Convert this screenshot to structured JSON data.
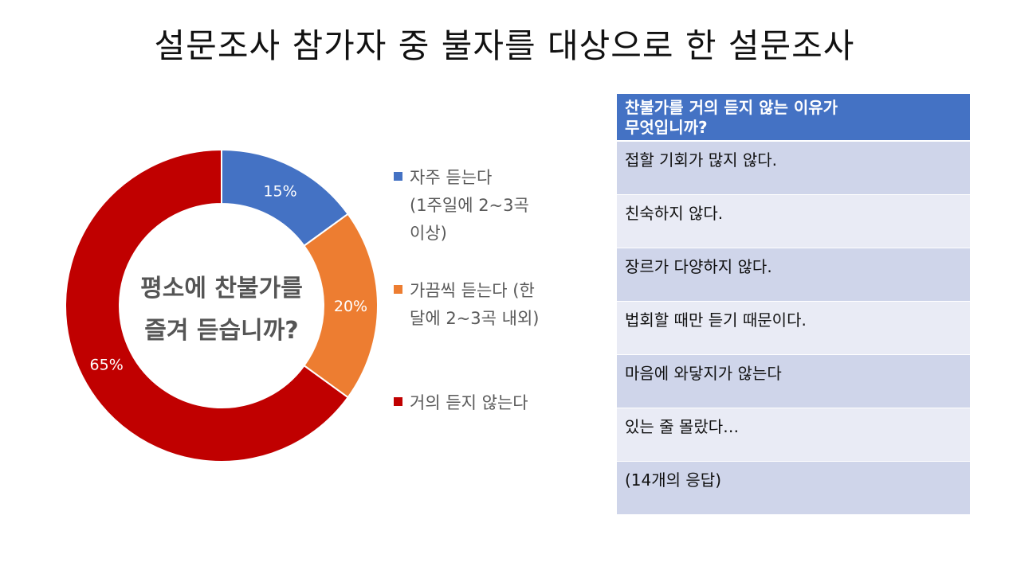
{
  "title": "설문조사 참가자 중 불자를 대상으로 한 설문조사",
  "chart_data": {
    "type": "donut",
    "center_label": "평소에 찬불가를\n즐겨 듣습니까?",
    "slices": [
      {
        "label": "자주 듣는다\n(1주일에 2~3곡\n이상)",
        "value": 15,
        "data_label": "15%",
        "color": "#4472c4"
      },
      {
        "label": "가끔씩 듣는다 (한\n달에 2~3곡 내외)",
        "value": 20,
        "data_label": "20%",
        "color": "#ed7d31"
      },
      {
        "label": "거의 듣지 않는다",
        "value": 65,
        "data_label": "65%",
        "color": "#c00000"
      }
    ]
  },
  "table": {
    "header": "찬불가를 거의 듣지 않는 이유가\n무엇입니까?",
    "rows": [
      "접할 기회가 많지 않다.",
      "친숙하지 않다.",
      "장르가 다양하지 않다.",
      "법회할 때만 듣기 때문이다.",
      "마음에 와닿지가 않는다",
      "있는 줄 몰랐다…",
      "(14개의 응답)"
    ]
  }
}
